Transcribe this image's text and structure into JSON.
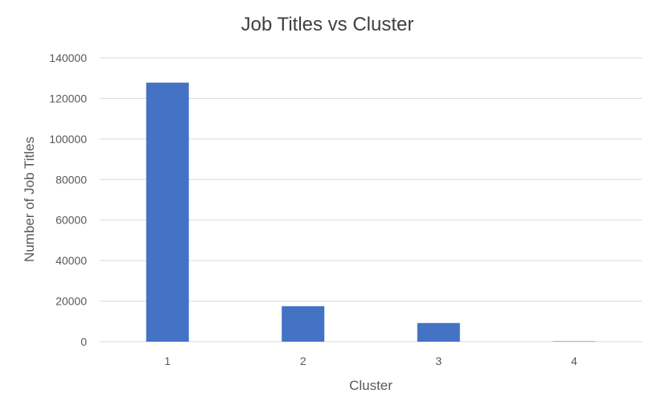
{
  "chart_data": {
    "type": "bar",
    "title": "Job Titles vs Cluster",
    "xlabel": "Cluster",
    "ylabel": "Number of Job Titles",
    "categories": [
      "1",
      "2",
      "3",
      "4"
    ],
    "values": [
      127800,
      17500,
      9200,
      200
    ],
    "ylim": [
      0,
      140000
    ],
    "yticks": [
      "0",
      "20000",
      "40000",
      "60000",
      "80000",
      "100000",
      "120000",
      "140000"
    ],
    "grid": true,
    "legend": "none",
    "colors": {
      "bar": "#4472C4",
      "grid": "#D9D9D9",
      "text": "#595959"
    }
  }
}
